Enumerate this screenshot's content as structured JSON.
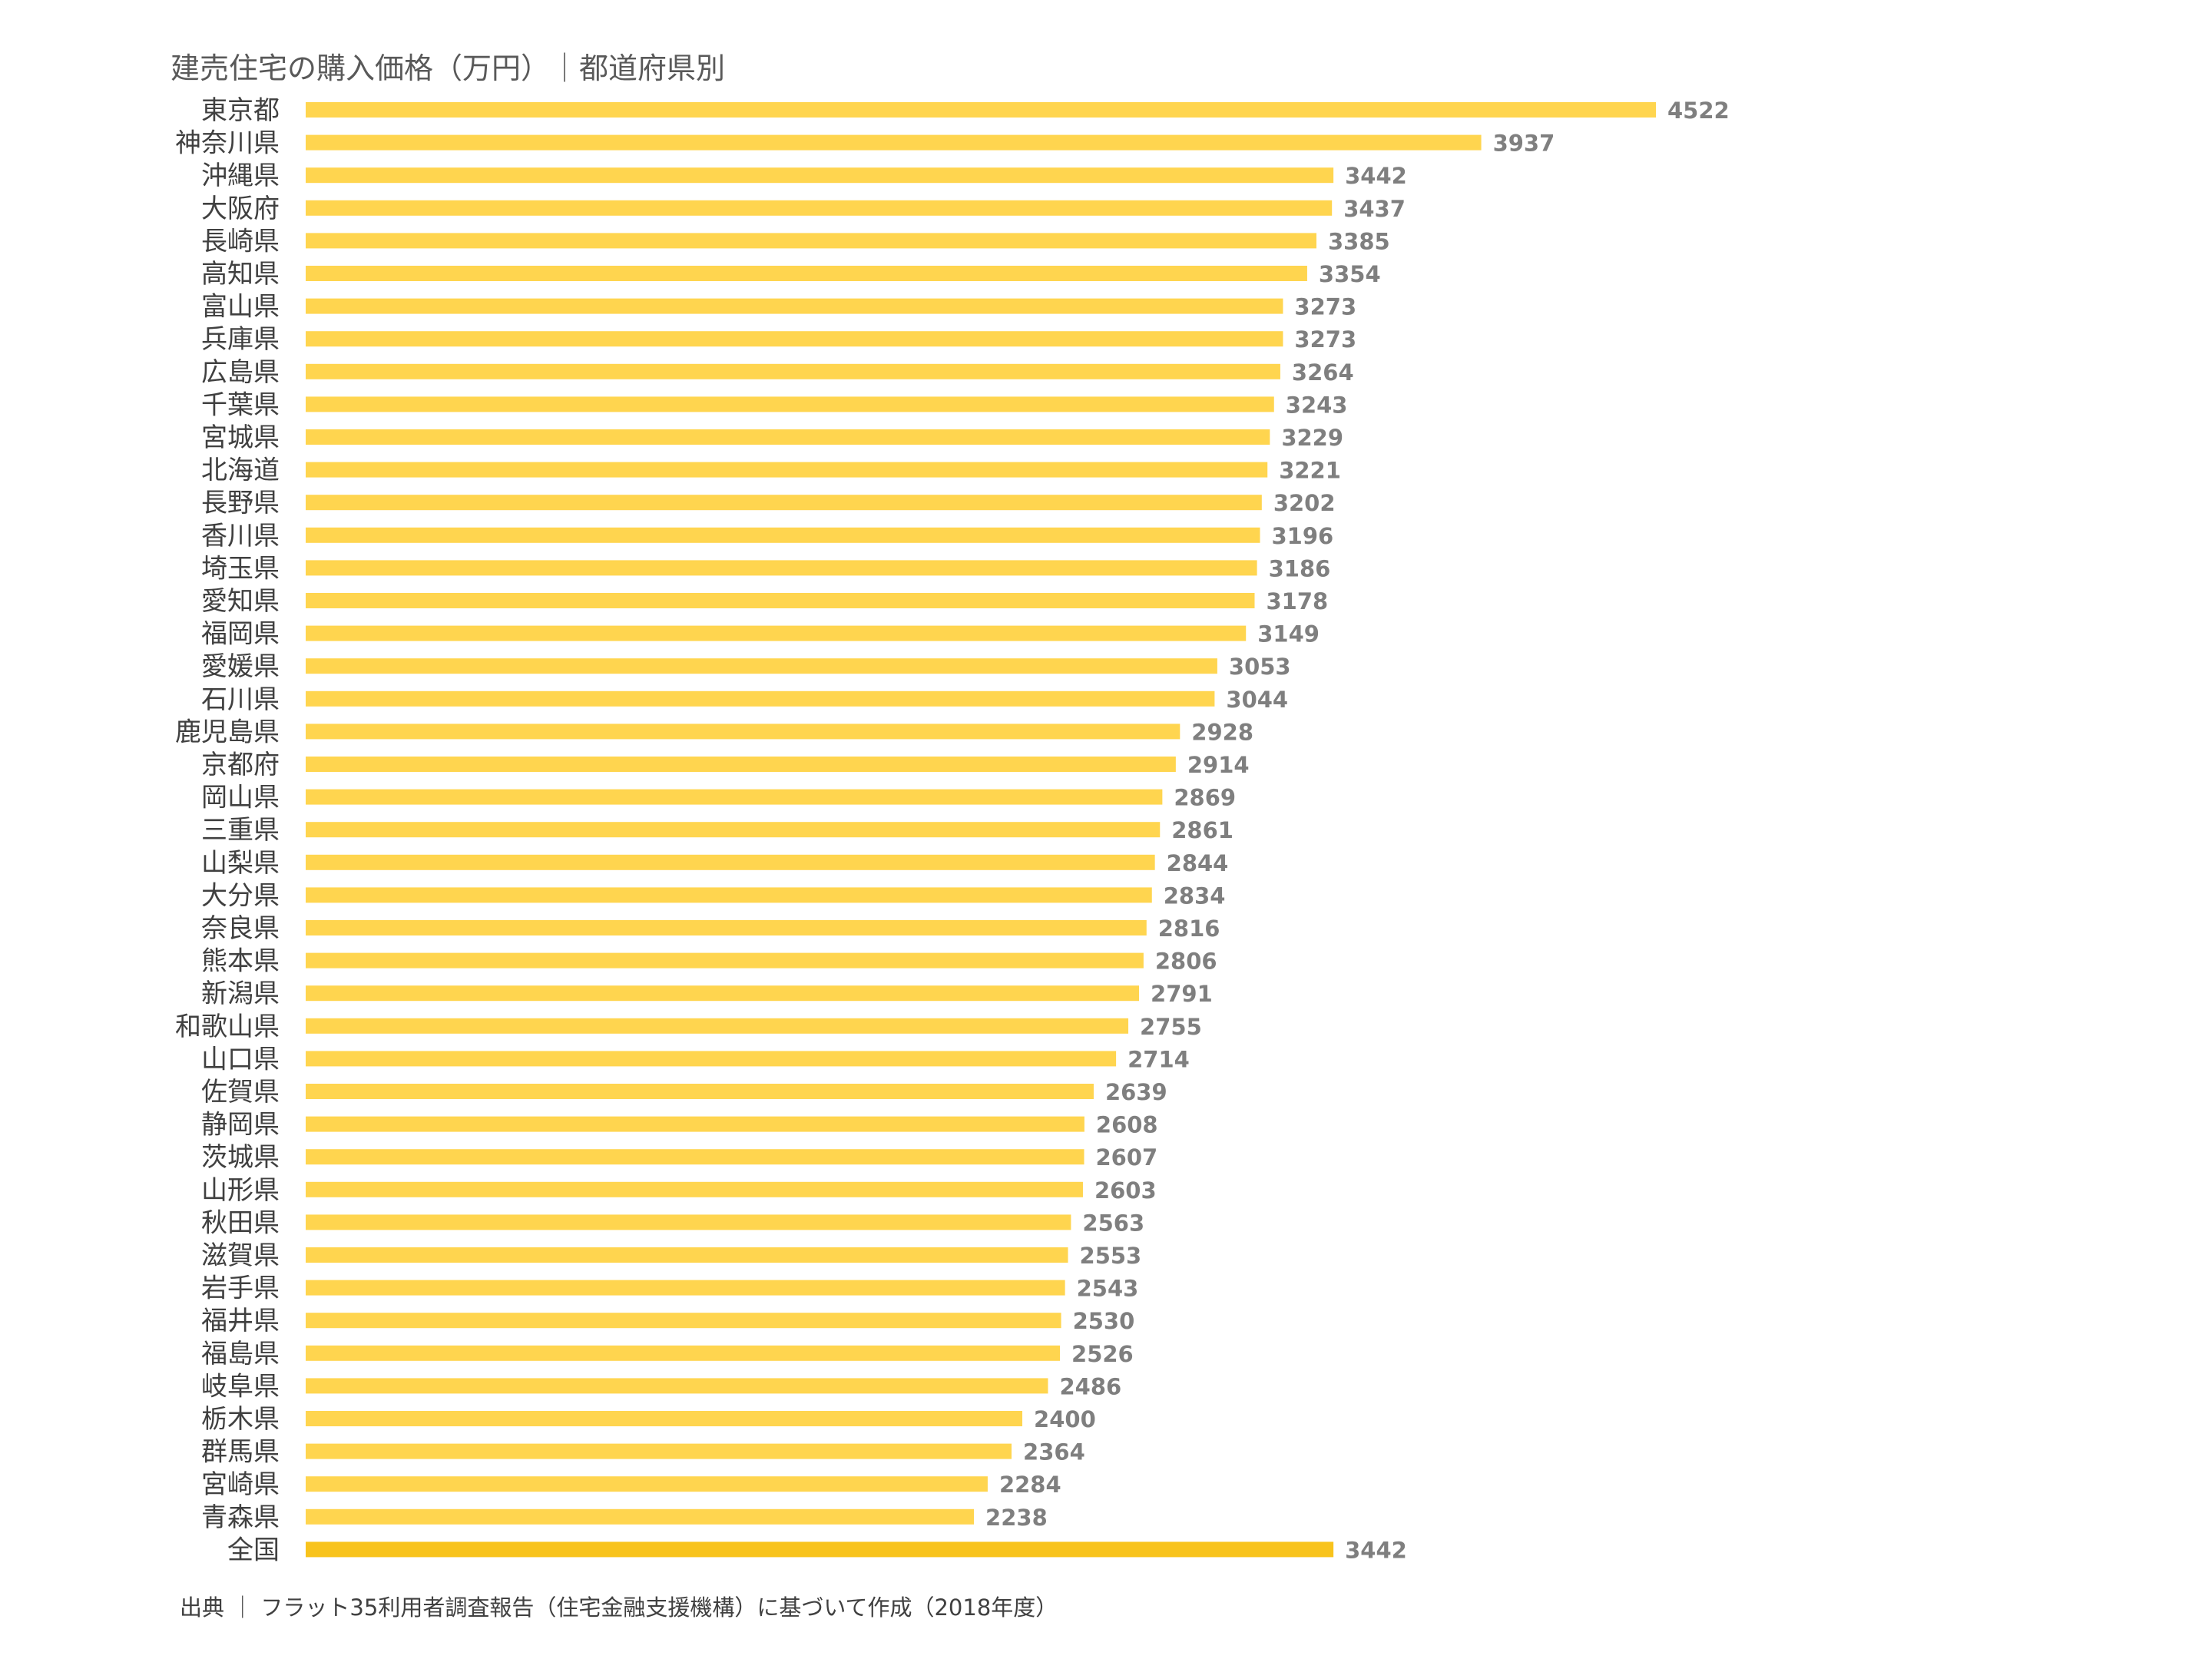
{
  "chart_data": {
    "type": "bar",
    "orientation": "horizontal",
    "title": "建売住宅の購入価格（万円）｜都道府県別",
    "source": "出典 ｜ フラット35利用者調査報告（住宅金融支援機構）に基づいて作成（2018年度）",
    "xlim": [
      0,
      4522
    ],
    "grid": false,
    "legend": "none",
    "colors": {
      "bar": "#FFD54F",
      "highlight": "#F8C31C",
      "value_text": "#7F7F7F",
      "label_text": "#404040"
    },
    "categories": [
      "東京都",
      "神奈川県",
      "沖縄県",
      "大阪府",
      "長崎県",
      "高知県",
      "富山県",
      "兵庫県",
      "広島県",
      "千葉県",
      "宮城県",
      "北海道",
      "長野県",
      "香川県",
      "埼玉県",
      "愛知県",
      "福岡県",
      "愛媛県",
      "石川県",
      "鹿児島県",
      "京都府",
      "岡山県",
      "三重県",
      "山梨県",
      "大分県",
      "奈良県",
      "熊本県",
      "新潟県",
      "和歌山県",
      "山口県",
      "佐賀県",
      "静岡県",
      "茨城県",
      "山形県",
      "秋田県",
      "滋賀県",
      "岩手県",
      "福井県",
      "福島県",
      "岐阜県",
      "栃木県",
      "群馬県",
      "宮崎県",
      "青森県",
      "全国"
    ],
    "values": [
      4522,
      3937,
      3442,
      3437,
      3385,
      3354,
      3273,
      3273,
      3264,
      3243,
      3229,
      3221,
      3202,
      3196,
      3186,
      3178,
      3149,
      3053,
      3044,
      2928,
      2914,
      2869,
      2861,
      2844,
      2834,
      2816,
      2806,
      2791,
      2755,
      2714,
      2639,
      2608,
      2607,
      2603,
      2563,
      2553,
      2543,
      2530,
      2526,
      2486,
      2400,
      2364,
      2284,
      2238,
      3442
    ],
    "highlight_category": "全国"
  }
}
